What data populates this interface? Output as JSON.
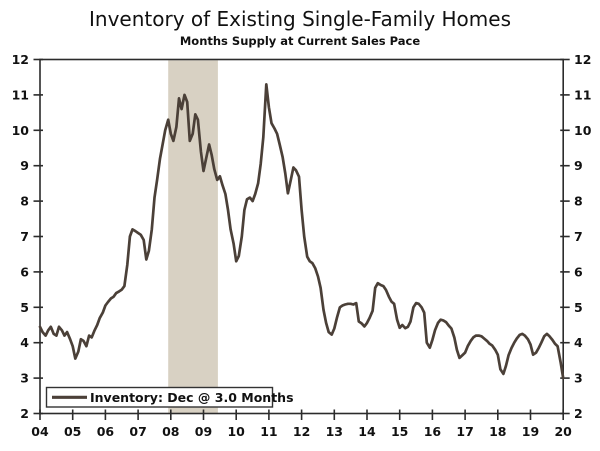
{
  "header": {
    "title": "Inventory of Existing Single-Family Homes",
    "subtitle": "Months Supply at Current Sales Pace"
  },
  "legend": {
    "label": "Inventory: Dec @ 3.0 Months",
    "position": "bottom-left"
  },
  "colors": {
    "line": "#4b4038",
    "recession_band": "#d8d1c3",
    "axis": "#2b2b2b",
    "legend_border": "#333333",
    "background": "#ffffff",
    "text": "#111111"
  },
  "chart_data": {
    "type": "line",
    "title": "Inventory of Existing Single-Family Homes",
    "subtitle": "Months Supply at Current Sales Pace",
    "xlabel": "",
    "ylabel": "Months Supply",
    "xlim": [
      2004,
      2020
    ],
    "ylim": [
      2,
      12
    ],
    "grid": false,
    "dual_y_axis": true,
    "x_tick_labels": [
      "04",
      "05",
      "06",
      "07",
      "08",
      "09",
      "10",
      "11",
      "12",
      "13",
      "14",
      "15",
      "16",
      "17",
      "18",
      "19",
      "20"
    ],
    "x_tick_years": [
      2004,
      2005,
      2006,
      2007,
      2008,
      2009,
      2010,
      2011,
      2012,
      2013,
      2014,
      2015,
      2016,
      2017,
      2018,
      2019,
      2020
    ],
    "y_ticks": [
      2,
      3,
      4,
      5,
      6,
      7,
      8,
      9,
      10,
      11,
      12
    ],
    "recession_band": {
      "start": 2007.92,
      "end": 2009.44
    },
    "legend_label": "Inventory: Dec @ 3.0 Months",
    "last_value_note": "Dec @ 3.0 Months",
    "series": [
      {
        "name": "Inventory",
        "points": [
          [
            2004.0,
            4.45
          ],
          [
            2004.08,
            4.3
          ],
          [
            2004.17,
            4.2
          ],
          [
            2004.25,
            4.35
          ],
          [
            2004.33,
            4.45
          ],
          [
            2004.42,
            4.25
          ],
          [
            2004.5,
            4.2
          ],
          [
            2004.58,
            4.45
          ],
          [
            2004.67,
            4.35
          ],
          [
            2004.75,
            4.2
          ],
          [
            2004.83,
            4.3
          ],
          [
            2004.92,
            4.1
          ],
          [
            2005.0,
            3.9
          ],
          [
            2005.08,
            3.55
          ],
          [
            2005.17,
            3.75
          ],
          [
            2005.25,
            4.1
          ],
          [
            2005.33,
            4.05
          ],
          [
            2005.42,
            3.9
          ],
          [
            2005.5,
            4.2
          ],
          [
            2005.58,
            4.15
          ],
          [
            2005.67,
            4.35
          ],
          [
            2005.75,
            4.5
          ],
          [
            2005.83,
            4.7
          ],
          [
            2005.92,
            4.85
          ],
          [
            2006.0,
            5.05
          ],
          [
            2006.08,
            5.15
          ],
          [
            2006.17,
            5.25
          ],
          [
            2006.25,
            5.3
          ],
          [
            2006.33,
            5.4
          ],
          [
            2006.42,
            5.45
          ],
          [
            2006.5,
            5.5
          ],
          [
            2006.58,
            5.6
          ],
          [
            2006.67,
            6.2
          ],
          [
            2006.75,
            7.0
          ],
          [
            2006.83,
            7.2
          ],
          [
            2006.92,
            7.15
          ],
          [
            2007.0,
            7.1
          ],
          [
            2007.08,
            7.05
          ],
          [
            2007.17,
            6.9
          ],
          [
            2007.25,
            6.35
          ],
          [
            2007.33,
            6.6
          ],
          [
            2007.42,
            7.2
          ],
          [
            2007.5,
            8.1
          ],
          [
            2007.58,
            8.6
          ],
          [
            2007.67,
            9.2
          ],
          [
            2007.75,
            9.6
          ],
          [
            2007.83,
            10.0
          ],
          [
            2007.92,
            10.3
          ],
          [
            2008.0,
            9.9
          ],
          [
            2008.08,
            9.7
          ],
          [
            2008.17,
            10.1
          ],
          [
            2008.25,
            10.9
          ],
          [
            2008.33,
            10.6
          ],
          [
            2008.42,
            11.0
          ],
          [
            2008.5,
            10.8
          ],
          [
            2008.58,
            9.7
          ],
          [
            2008.67,
            9.9
          ],
          [
            2008.75,
            10.45
          ],
          [
            2008.83,
            10.3
          ],
          [
            2008.92,
            9.4
          ],
          [
            2009.0,
            8.85
          ],
          [
            2009.08,
            9.2
          ],
          [
            2009.17,
            9.6
          ],
          [
            2009.25,
            9.3
          ],
          [
            2009.33,
            8.9
          ],
          [
            2009.42,
            8.6
          ],
          [
            2009.5,
            8.7
          ],
          [
            2009.58,
            8.45
          ],
          [
            2009.67,
            8.2
          ],
          [
            2009.75,
            7.75
          ],
          [
            2009.83,
            7.2
          ],
          [
            2009.92,
            6.8
          ],
          [
            2010.0,
            6.3
          ],
          [
            2010.08,
            6.45
          ],
          [
            2010.17,
            7.0
          ],
          [
            2010.25,
            7.75
          ],
          [
            2010.33,
            8.05
          ],
          [
            2010.42,
            8.1
          ],
          [
            2010.5,
            8.0
          ],
          [
            2010.58,
            8.2
          ],
          [
            2010.67,
            8.5
          ],
          [
            2010.75,
            9.05
          ],
          [
            2010.83,
            9.8
          ],
          [
            2010.92,
            11.3
          ],
          [
            2011.0,
            10.65
          ],
          [
            2011.08,
            10.2
          ],
          [
            2011.17,
            10.05
          ],
          [
            2011.25,
            9.9
          ],
          [
            2011.33,
            9.6
          ],
          [
            2011.42,
            9.25
          ],
          [
            2011.5,
            8.78
          ],
          [
            2011.58,
            8.22
          ],
          [
            2011.67,
            8.6
          ],
          [
            2011.75,
            8.95
          ],
          [
            2011.83,
            8.87
          ],
          [
            2011.92,
            8.69
          ],
          [
            2012.0,
            7.75
          ],
          [
            2012.08,
            7.0
          ],
          [
            2012.17,
            6.43
          ],
          [
            2012.25,
            6.3
          ],
          [
            2012.33,
            6.25
          ],
          [
            2012.42,
            6.1
          ],
          [
            2012.5,
            5.87
          ],
          [
            2012.58,
            5.55
          ],
          [
            2012.67,
            4.93
          ],
          [
            2012.75,
            4.56
          ],
          [
            2012.83,
            4.3
          ],
          [
            2012.92,
            4.23
          ],
          [
            2013.0,
            4.4
          ],
          [
            2013.08,
            4.7
          ],
          [
            2013.17,
            5.0
          ],
          [
            2013.25,
            5.05
          ],
          [
            2013.33,
            5.08
          ],
          [
            2013.42,
            5.1
          ],
          [
            2013.5,
            5.1
          ],
          [
            2013.58,
            5.08
          ],
          [
            2013.67,
            5.12
          ],
          [
            2013.75,
            4.6
          ],
          [
            2013.83,
            4.55
          ],
          [
            2013.92,
            4.46
          ],
          [
            2014.0,
            4.56
          ],
          [
            2014.08,
            4.7
          ],
          [
            2014.17,
            4.9
          ],
          [
            2014.25,
            5.55
          ],
          [
            2014.33,
            5.68
          ],
          [
            2014.42,
            5.63
          ],
          [
            2014.5,
            5.6
          ],
          [
            2014.58,
            5.49
          ],
          [
            2014.67,
            5.3
          ],
          [
            2014.75,
            5.16
          ],
          [
            2014.83,
            5.1
          ],
          [
            2014.92,
            4.65
          ],
          [
            2015.0,
            4.42
          ],
          [
            2015.08,
            4.5
          ],
          [
            2015.17,
            4.41
          ],
          [
            2015.25,
            4.45
          ],
          [
            2015.33,
            4.6
          ],
          [
            2015.42,
            5.0
          ],
          [
            2015.5,
            5.12
          ],
          [
            2015.58,
            5.1
          ],
          [
            2015.67,
            5.0
          ],
          [
            2015.75,
            4.85
          ],
          [
            2015.83,
            4.0
          ],
          [
            2015.92,
            3.86
          ],
          [
            2016.0,
            4.08
          ],
          [
            2016.08,
            4.35
          ],
          [
            2016.17,
            4.56
          ],
          [
            2016.25,
            4.65
          ],
          [
            2016.33,
            4.63
          ],
          [
            2016.42,
            4.58
          ],
          [
            2016.5,
            4.48
          ],
          [
            2016.58,
            4.4
          ],
          [
            2016.67,
            4.15
          ],
          [
            2016.75,
            3.8
          ],
          [
            2016.83,
            3.57
          ],
          [
            2016.92,
            3.65
          ],
          [
            2017.0,
            3.72
          ],
          [
            2017.08,
            3.9
          ],
          [
            2017.17,
            4.05
          ],
          [
            2017.25,
            4.15
          ],
          [
            2017.33,
            4.2
          ],
          [
            2017.42,
            4.2
          ],
          [
            2017.5,
            4.18
          ],
          [
            2017.58,
            4.12
          ],
          [
            2017.67,
            4.05
          ],
          [
            2017.75,
            3.97
          ],
          [
            2017.83,
            3.92
          ],
          [
            2017.92,
            3.8
          ],
          [
            2018.0,
            3.66
          ],
          [
            2018.08,
            3.25
          ],
          [
            2018.17,
            3.12
          ],
          [
            2018.25,
            3.35
          ],
          [
            2018.33,
            3.65
          ],
          [
            2018.42,
            3.85
          ],
          [
            2018.5,
            4.0
          ],
          [
            2018.58,
            4.12
          ],
          [
            2018.67,
            4.22
          ],
          [
            2018.75,
            4.25
          ],
          [
            2018.83,
            4.2
          ],
          [
            2018.92,
            4.1
          ],
          [
            2019.0,
            3.95
          ],
          [
            2019.08,
            3.66
          ],
          [
            2019.17,
            3.72
          ],
          [
            2019.25,
            3.85
          ],
          [
            2019.33,
            4.0
          ],
          [
            2019.42,
            4.18
          ],
          [
            2019.5,
            4.25
          ],
          [
            2019.58,
            4.18
          ],
          [
            2019.67,
            4.08
          ],
          [
            2019.75,
            3.97
          ],
          [
            2019.83,
            3.9
          ],
          [
            2019.92,
            3.45
          ],
          [
            2020.0,
            3.0
          ]
        ]
      }
    ]
  }
}
